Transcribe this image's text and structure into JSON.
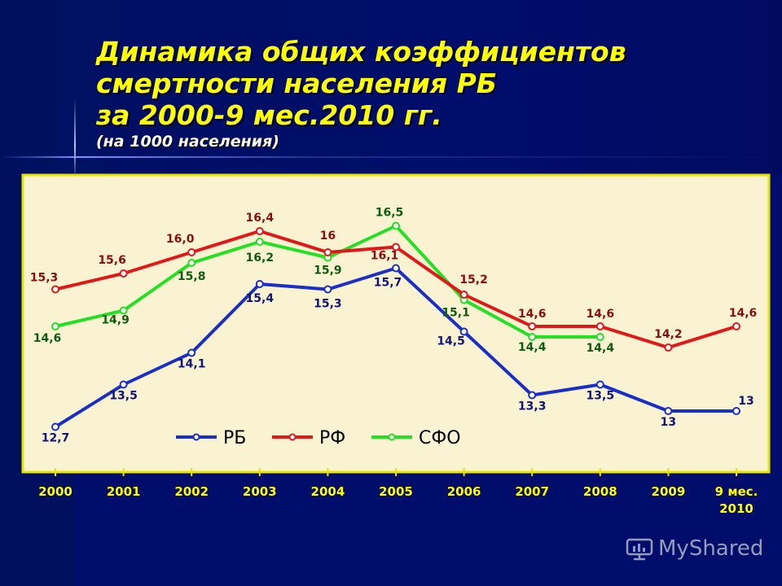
{
  "title": {
    "line1": "Динамика общих коэффициентов",
    "line2": "смертности населения РБ",
    "line3": "за 2000-9 мес.2010 гг.",
    "subtitle": "(на 1000 населения)"
  },
  "watermark": "MyShared",
  "colors": {
    "background": "#000d6b",
    "plot_area": "#faf3d2",
    "plot_border": "#e6e600",
    "title": "#ffff00",
    "axis_labels": "#ffff00"
  },
  "chart_data": {
    "type": "line",
    "categories": [
      "2000",
      "2001",
      "2002",
      "2003",
      "2004",
      "2005",
      "2006",
      "2007",
      "2008",
      "2009",
      "9 мес.\n2010"
    ],
    "ylim": [
      12,
      17
    ],
    "grid": false,
    "legend_position": "bottom-center",
    "series": [
      {
        "name": "РБ",
        "color": "#1a2fc9",
        "label_color": "#10147a",
        "values": [
          12.7,
          13.5,
          14.1,
          15.4,
          15.3,
          15.7,
          14.5,
          13.3,
          13.5,
          13,
          13
        ],
        "labels": [
          "12,7",
          "13,5",
          "14,1",
          "15,4",
          "15,3",
          "15,7",
          "14,5",
          "13,3",
          "13,5",
          "13",
          "13"
        ]
      },
      {
        "name": "РФ",
        "color": "#e01818",
        "label_color": "#8b0f0f",
        "values": [
          15.3,
          15.6,
          16.0,
          16.4,
          16,
          16.1,
          15.2,
          14.6,
          14.6,
          14.2,
          14.6
        ],
        "labels": [
          "15,3",
          "15,6",
          "16,0",
          "16,4",
          "16",
          "16,1",
          "15,2",
          "14,6",
          "14,6",
          "14,2",
          "14,6"
        ]
      },
      {
        "name": "СФО",
        "color": "#22e022",
        "label_color": "#0e5c0e",
        "values": [
          14.6,
          14.9,
          15.8,
          16.2,
          15.9,
          16.5,
          15.1,
          14.4,
          14.4,
          null,
          null
        ],
        "labels": [
          "14,6",
          "14,9",
          "15,8",
          "16,2",
          "15,9",
          "16,5",
          "15,1",
          "14,4",
          "14,4",
          "",
          ""
        ]
      }
    ]
  }
}
